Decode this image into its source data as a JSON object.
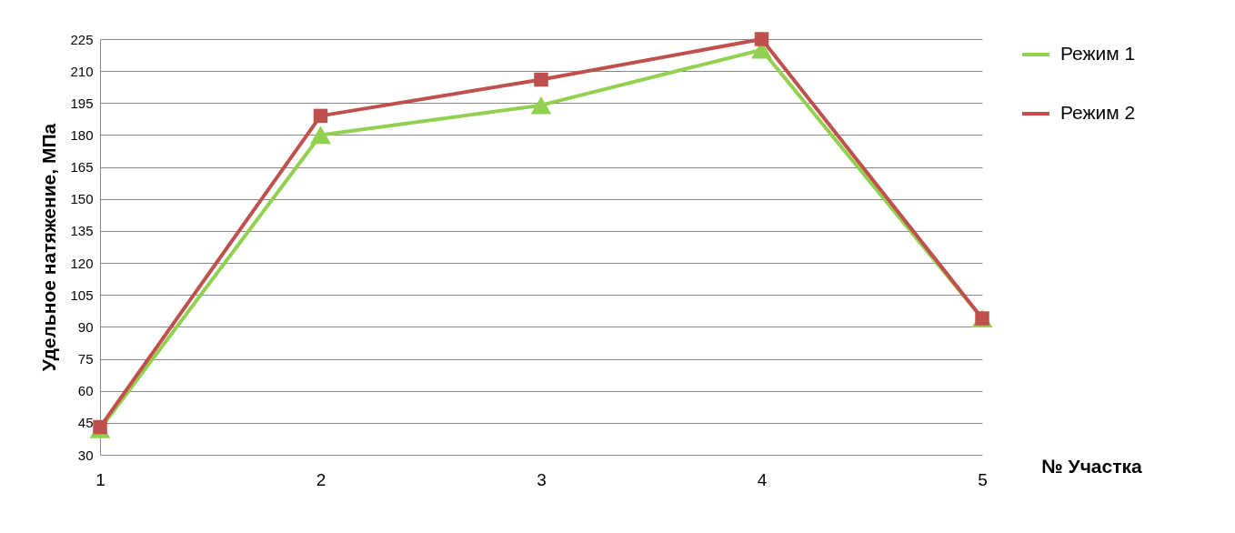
{
  "chart_data": {
    "type": "line",
    "xlabel": "№ Участка",
    "ylabel": "Удельное натяжение, МПа",
    "categories": [
      "1",
      "2",
      "3",
      "4",
      "5"
    ],
    "series": [
      {
        "name": "Режим 1",
        "color": "#92d050",
        "marker": "triangle",
        "values": [
          42,
          180,
          194,
          220,
          94
        ]
      },
      {
        "name": "Режим 2",
        "color": "#c0504d",
        "marker": "square",
        "values": [
          43,
          189,
          206,
          225,
          94
        ]
      }
    ],
    "ylim": [
      30,
      225
    ],
    "yticks": [
      30,
      45,
      60,
      75,
      90,
      105,
      120,
      135,
      150,
      165,
      180,
      195,
      210,
      225
    ],
    "grid": "y",
    "legend": "right",
    "line_style": "solid"
  }
}
